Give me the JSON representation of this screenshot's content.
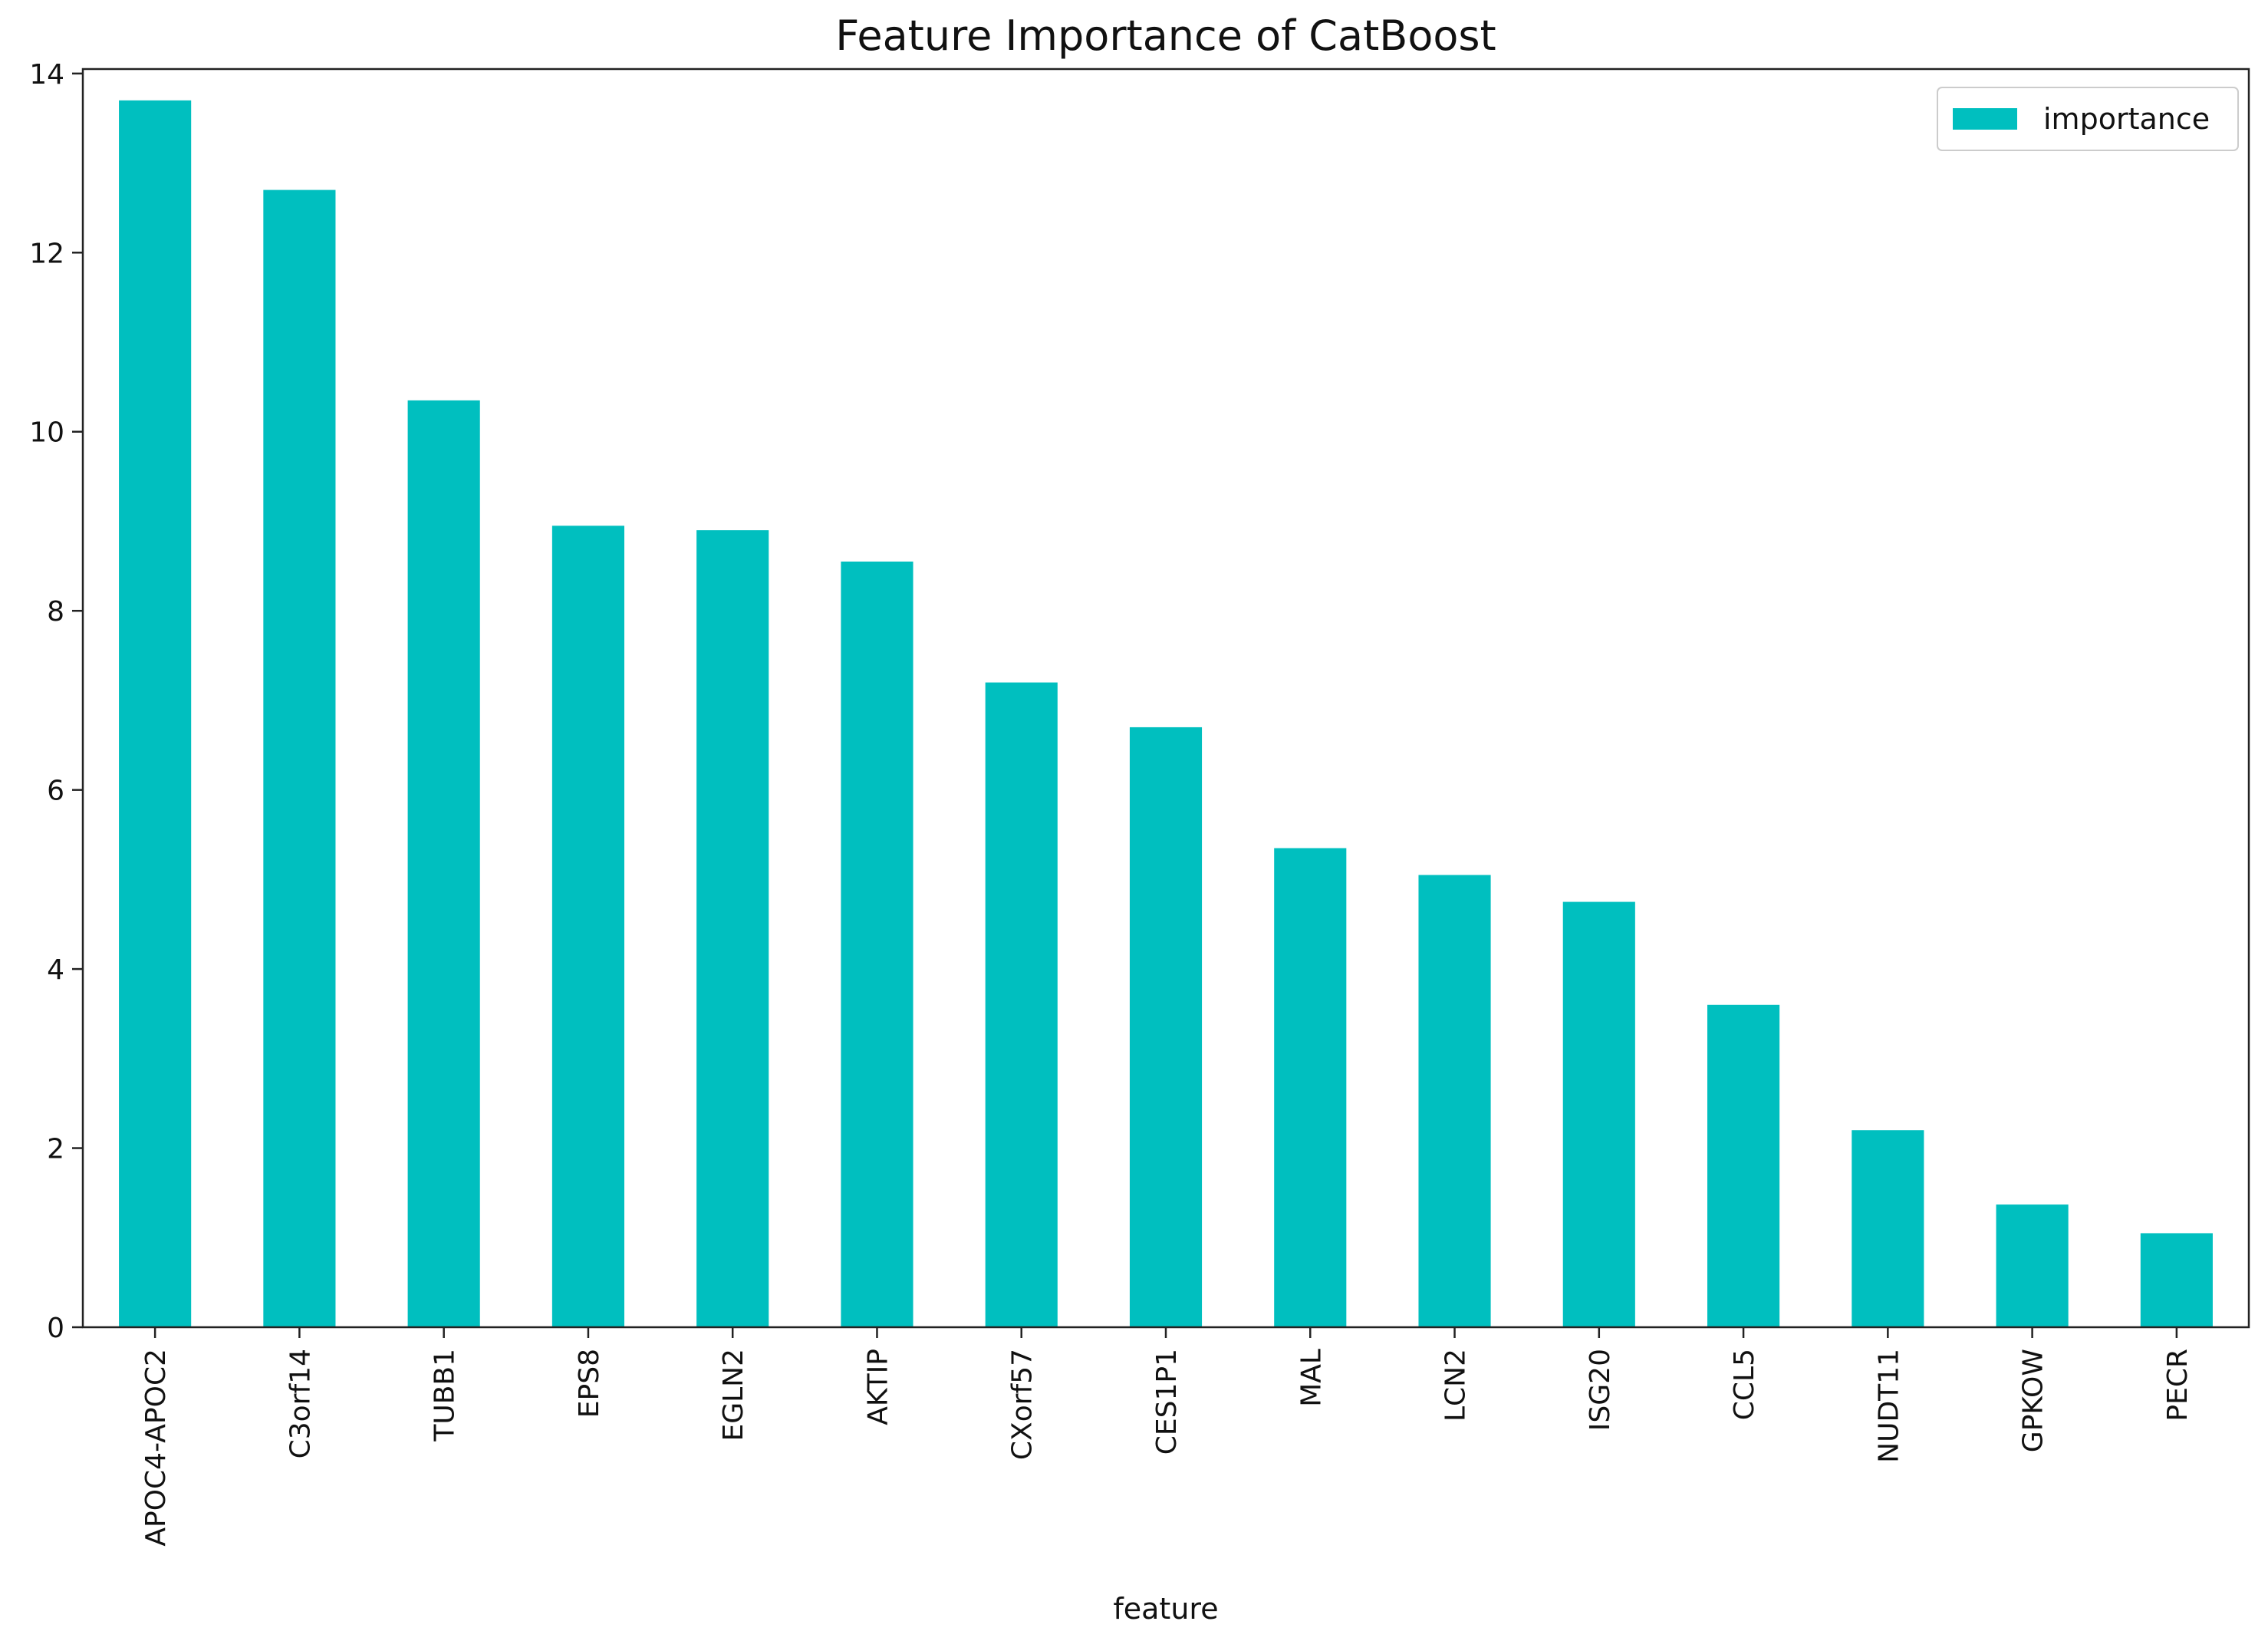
{
  "chart_data": {
    "type": "bar",
    "title": "Feature Importance of CatBoost",
    "xlabel": "feature",
    "ylabel": "",
    "categories": [
      "APOC4-APOC2",
      "C3orf14",
      "TUBB1",
      "EPS8",
      "EGLN2",
      "AKTIP",
      "CXorf57",
      "CES1P1",
      "MAL",
      "LCN2",
      "ISG20",
      "CCL5",
      "NUDT11",
      "GPKOW",
      "PECR"
    ],
    "series": [
      {
        "name": "importance",
        "color": "#00bfbf",
        "values": [
          13.7,
          12.7,
          10.35,
          8.95,
          8.9,
          8.55,
          7.2,
          6.7,
          5.35,
          5.05,
          4.75,
          3.6,
          2.2,
          1.37,
          1.05
        ]
      }
    ],
    "yticks": [
      0,
      2,
      4,
      6,
      8,
      10,
      12,
      14
    ],
    "ylim": [
      0,
      14.05
    ],
    "grid": false,
    "legend_position": "top-right"
  }
}
